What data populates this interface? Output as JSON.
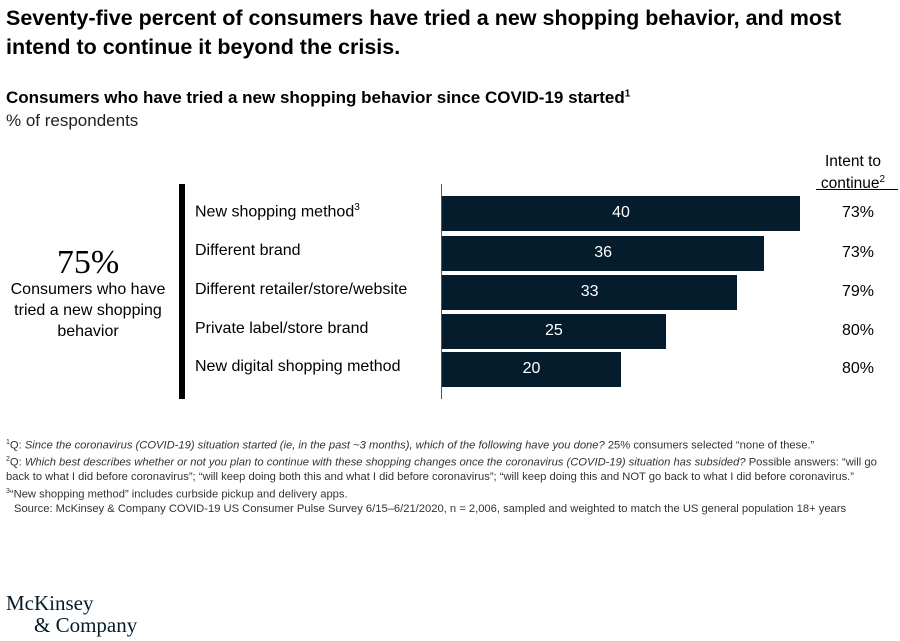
{
  "title": "Seventy-five percent of consumers have tried a new shopping behavior, and most intend to continue it beyond the crisis.",
  "chart_data": {
    "type": "bar",
    "orientation": "horizontal",
    "title": "Consumers who have tried a new shopping behavior since COVID-19 started",
    "title_footnote": "1",
    "unit_label": "% of respondents",
    "categories": [
      "New shopping method",
      "Different brand",
      "Different retailer/store/website",
      "Private label/store brand",
      "New digital shopping method"
    ],
    "category_footnotes": [
      "3",
      "",
      "",
      "",
      ""
    ],
    "values": [
      40,
      36,
      33,
      25,
      20
    ],
    "data_labels": [
      "40",
      "36",
      "33",
      "25",
      "20"
    ],
    "xlim": [
      0,
      50
    ],
    "grid": false,
    "bar_color": "#051c2c",
    "intent_header": "Intent to continue",
    "intent_header_footnote": "2",
    "intent_values": [
      "73%",
      "73%",
      "79%",
      "80%",
      "80%"
    ],
    "callout": {
      "value": "75%",
      "label": "Consumers who have tried a new shopping behavior"
    }
  },
  "footnotes": {
    "f1": {
      "mark": "1",
      "prefix": "Q: ",
      "question": "Since the coronavirus (COVID-19) situation started (ie, in the past ~3 months), which of the following have you done?",
      "rest": " 25% consumers selected “none of these.”"
    },
    "f2": {
      "mark": "2",
      "prefix": "Q: ",
      "question": "Which best describes whether or not you plan to continue with these shopping changes once the coronavirus (COVID-19) situation has subsided?",
      "rest": " Possible answers: “will go back to what I did before coronavirus”; “will keep doing both this and what I did before coronavirus”; “will keep doing this and NOT go back to what I did before coronavirus.”"
    },
    "f3": {
      "mark": "3",
      "text": "“New shopping method” includes curbside pickup and delivery apps."
    },
    "source": "Source: McKinsey & Company COVID-19 US Consumer Pulse Survey 6/15–6/21/2020, n = 2,006, sampled and weighted to match the US general population 18+ years"
  },
  "logo": {
    "line1": "McKinsey",
    "line2": "& Company"
  }
}
